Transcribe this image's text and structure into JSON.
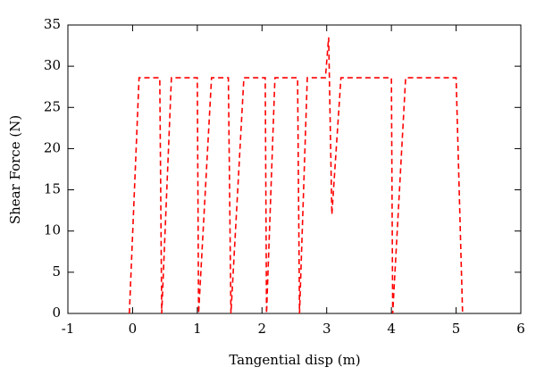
{
  "chart_data": {
    "type": "line",
    "xlabel": "Tangential disp (m)",
    "ylabel": "Shear Force (N)",
    "x": [
      -0.05,
      0.1,
      0.42,
      0.45,
      0.6,
      1.0,
      1.02,
      1.22,
      1.48,
      1.52,
      1.72,
      2.05,
      2.07,
      2.2,
      2.55,
      2.58,
      2.7,
      2.98,
      3.03,
      3.08,
      3.22,
      4.0,
      4.02,
      4.22,
      5.0,
      5.1
    ],
    "values": [
      0,
      28.6,
      28.6,
      0,
      28.6,
      28.6,
      0,
      28.6,
      28.6,
      0,
      28.6,
      28.6,
      0,
      28.6,
      28.6,
      0,
      28.6,
      28.6,
      33.5,
      12,
      28.6,
      28.6,
      0,
      28.6,
      28.6,
      0
    ],
    "color": "#ff0000",
    "dashed": true,
    "xlim": [
      -1,
      6
    ],
    "xticks": [
      -1,
      0,
      1,
      2,
      3,
      4,
      5,
      6
    ],
    "ylim": [
      0,
      35
    ],
    "yticks": [
      0,
      5,
      10,
      15,
      20,
      25,
      30,
      35
    ]
  }
}
